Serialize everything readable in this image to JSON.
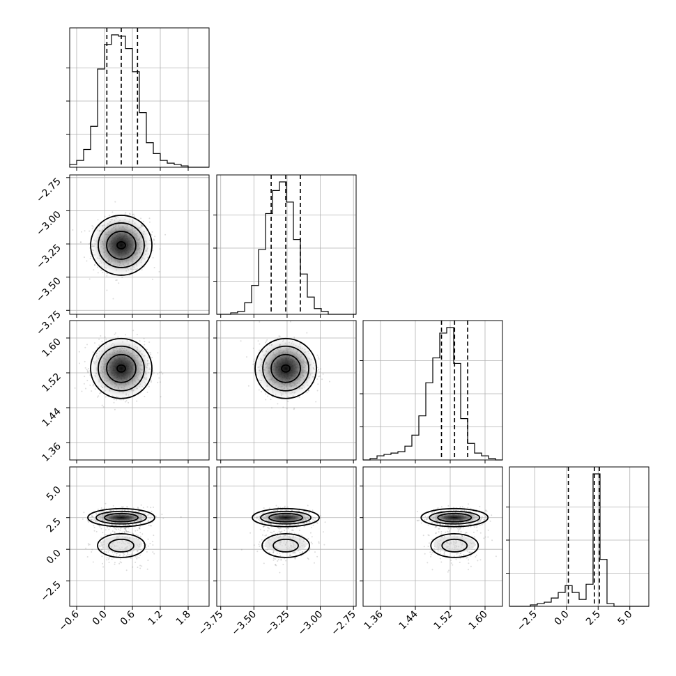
{
  "chart_data": {
    "type": "corner",
    "parameters": [
      {
        "index": 0,
        "range": [
          -0.75,
          2.25
        ],
        "ticks": [
          "-0.6",
          "0.0",
          "0.6",
          "1.2",
          "1.8"
        ],
        "tick_values": [
          -0.6,
          0.0,
          0.6,
          1.2,
          1.8
        ],
        "quantiles": [
          0.05,
          0.36,
          0.71
        ],
        "mean": 0.36,
        "sd": 0.3
      },
      {
        "index": 1,
        "range": [
          -3.78,
          -2.73
        ],
        "ticks": [
          "-3.75",
          "-3.50",
          "-3.25",
          "-3.00",
          "-2.75"
        ],
        "tick_values": [
          -3.75,
          -3.5,
          -3.25,
          -3.0,
          -2.75
        ],
        "quantiles": [
          -3.37,
          -3.26,
          -3.15
        ],
        "mean": -3.26,
        "sd": 0.1
      },
      {
        "index": 2,
        "range": [
          1.32,
          1.64
        ],
        "ticks": [
          "1.36",
          "1.44",
          "1.52",
          "1.60"
        ],
        "tick_values": [
          1.36,
          1.44,
          1.52,
          1.6
        ],
        "quantiles": [
          1.5,
          1.53,
          1.56
        ],
        "mean": 1.53,
        "sd": 0.03
      },
      {
        "index": 3,
        "range": [
          -4.5,
          6.5
        ],
        "ticks": [
          "-2.5",
          "0.0",
          "2.5",
          "5.0"
        ],
        "tick_values": [
          -2.5,
          0.0,
          2.5,
          5.0
        ],
        "quantiles": [
          0.15,
          2.2,
          2.6
        ],
        "modes": [
          {
            "mean": 0.4,
            "sd": 0.8,
            "weight": 0.3
          },
          {
            "mean": 2.45,
            "sd": 0.35,
            "weight": 0.7
          }
        ]
      }
    ],
    "histograms": [
      {
        "param": 0,
        "bins": [
          -0.75,
          2.25
        ],
        "counts": [
          2,
          5,
          13,
          30,
          72,
          90,
          97,
          96,
          87,
          70,
          40,
          18,
          10,
          5,
          3,
          2,
          1,
          0,
          0,
          0
        ]
      },
      {
        "param": 1,
        "bins": [
          -3.78,
          -2.73
        ],
        "counts": [
          0,
          0,
          1,
          2,
          8,
          20,
          45,
          70,
          86,
          92,
          78,
          52,
          28,
          12,
          4,
          2,
          0,
          0,
          0,
          0
        ]
      },
      {
        "param": 2,
        "bins": [
          1.32,
          1.64
        ],
        "counts": [
          0,
          1,
          3,
          4,
          5,
          6,
          10,
          18,
          32,
          56,
          74,
          92,
          96,
          70,
          30,
          12,
          5,
          3,
          1,
          0
        ]
      },
      {
        "param": 3,
        "bins": [
          -4.5,
          6.5
        ],
        "counts": [
          0,
          0,
          0,
          1,
          2,
          3,
          6,
          10,
          15,
          10,
          5,
          16,
          96,
          34,
          2,
          0,
          0,
          0,
          0,
          0
        ]
      }
    ],
    "grid": true,
    "contours": true,
    "scatter": true
  }
}
